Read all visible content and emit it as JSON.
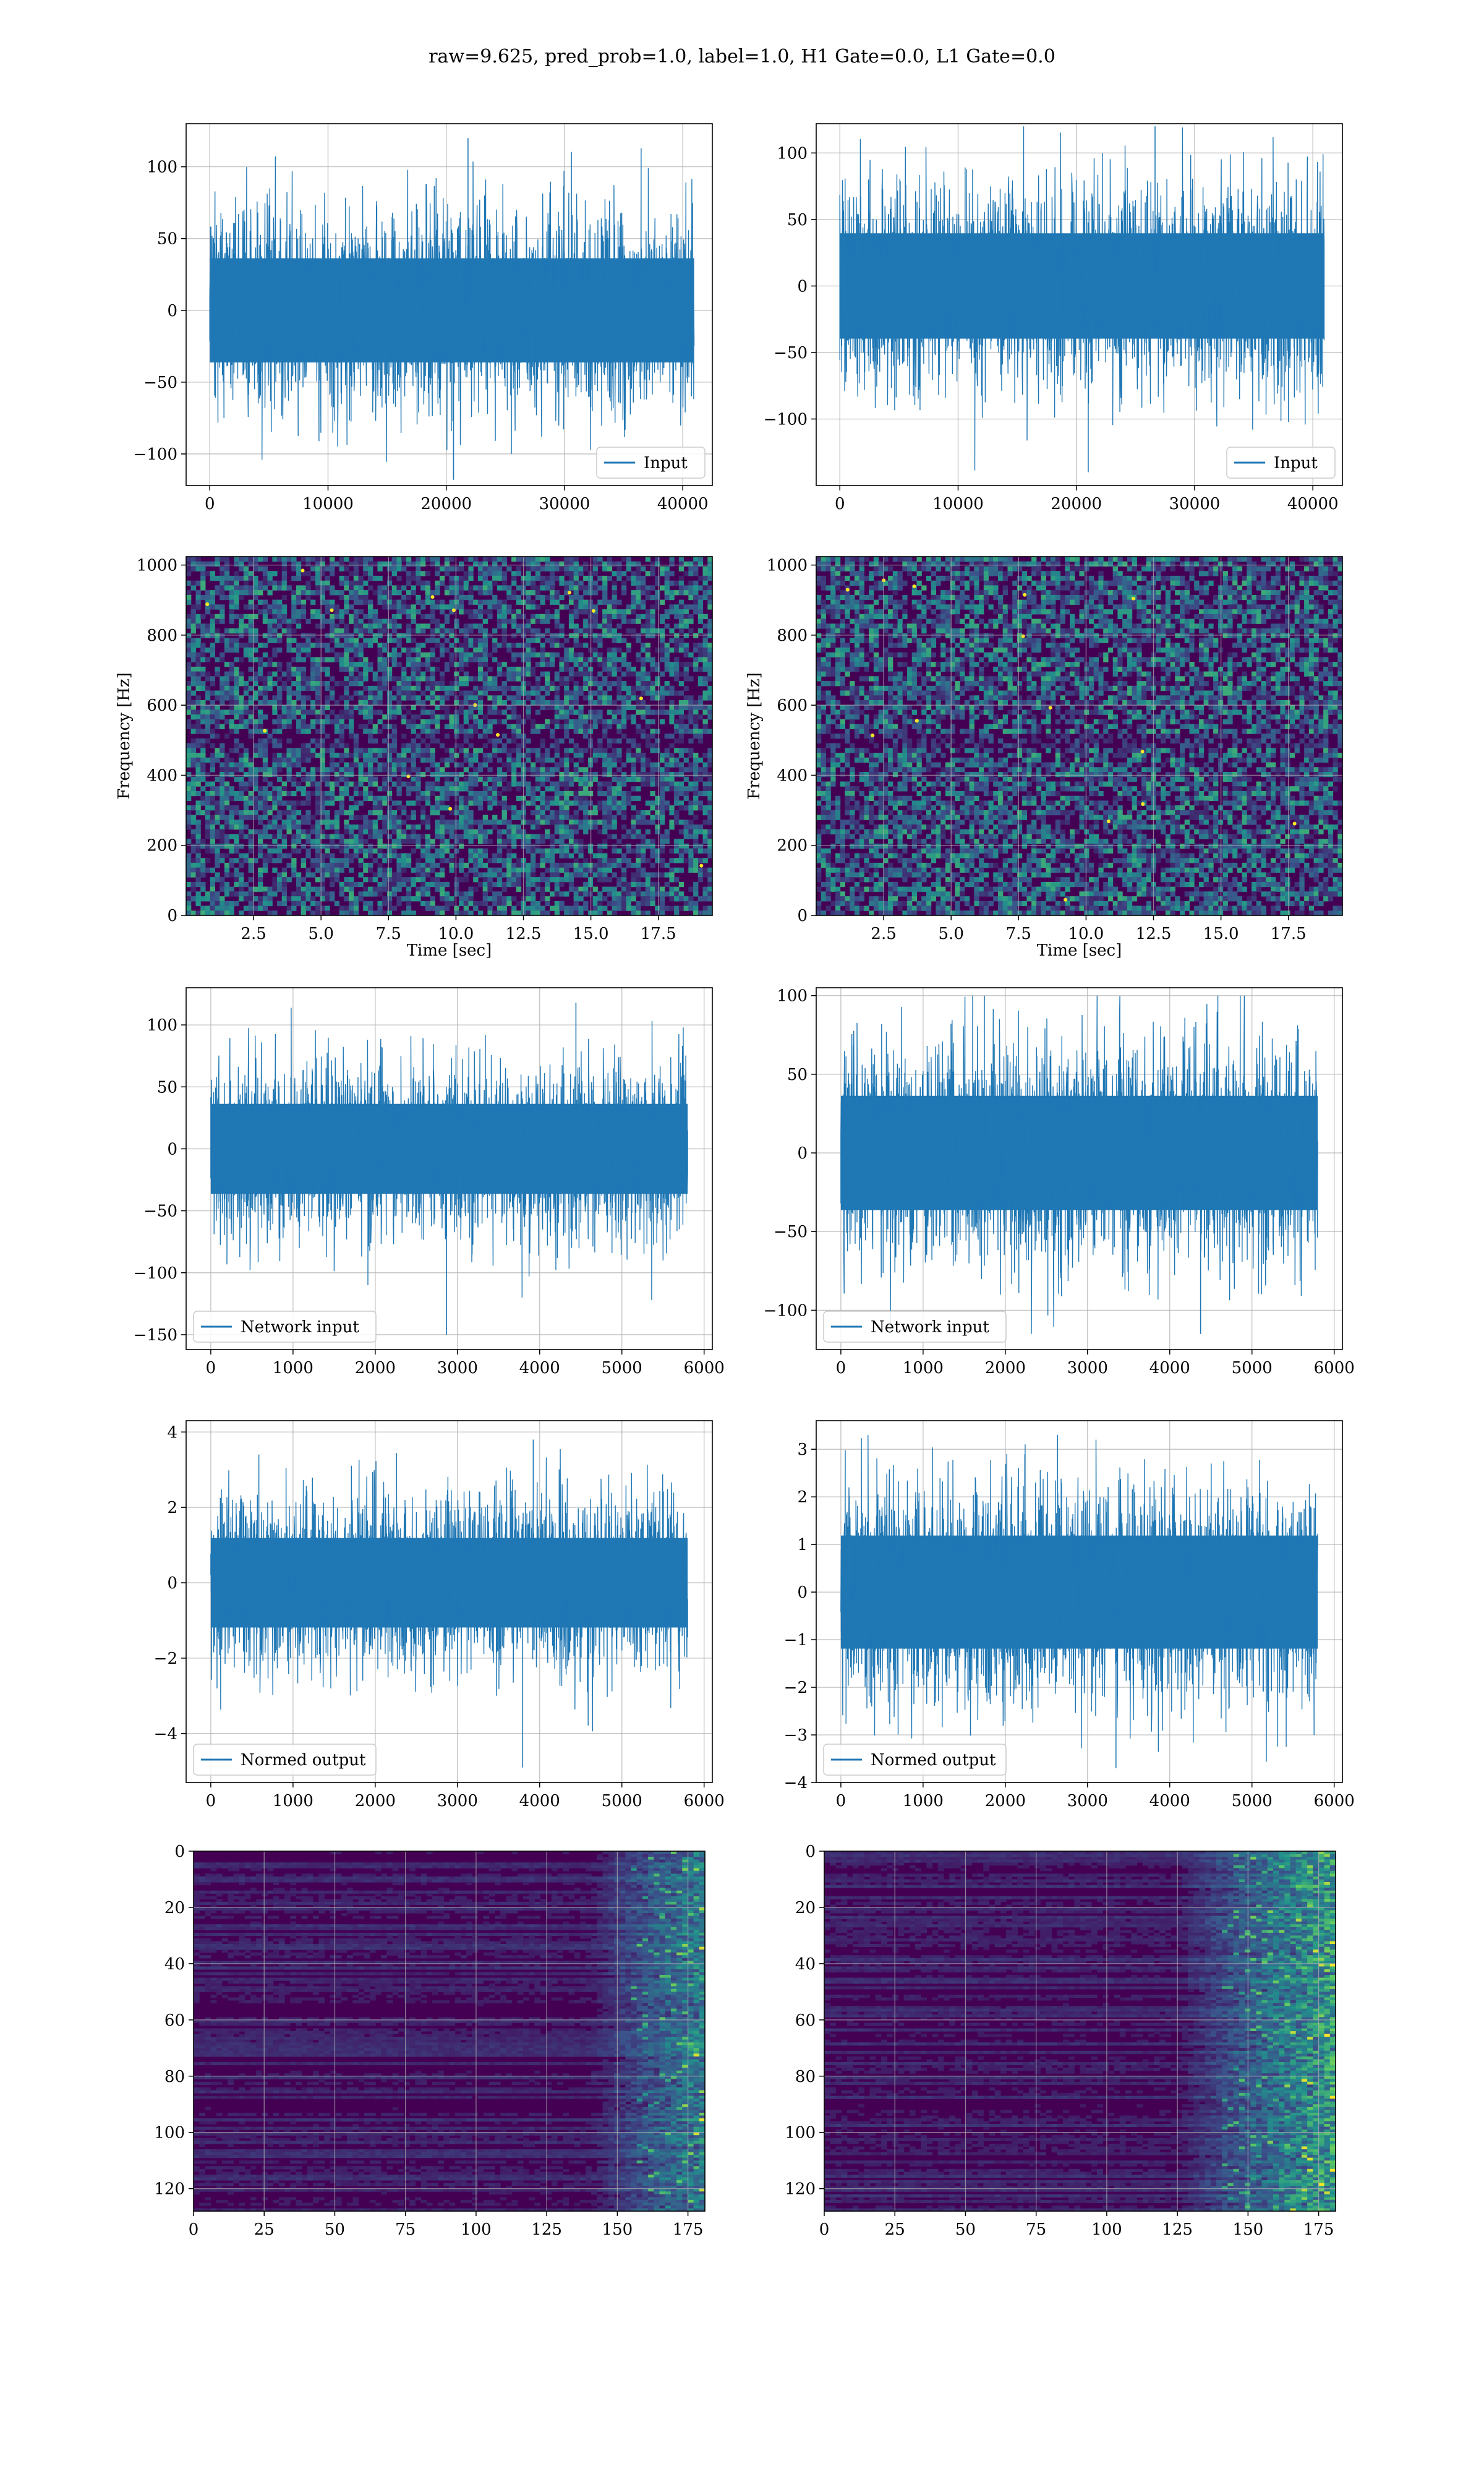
{
  "figure": {
    "title": "raw=9.625, pred_prob=1.0, label=1.0, H1 Gate=0.0, L1 Gate=0.0",
    "colors": {
      "line": "#1f77b4",
      "grid": "#b0b0b0",
      "viridis_low": "#440154",
      "viridis_mid": "#21918c",
      "viridis_high": "#fde725"
    }
  },
  "chart_data": [
    {
      "id": "h1-input",
      "type": "line",
      "series": [
        {
          "name": "Input",
          "x_range": [
            0,
            40960
          ],
          "values_range": [
            -118,
            120
          ],
          "typical_range": [
            -55,
            55
          ]
        }
      ],
      "xlim": [
        -2000,
        42500
      ],
      "ylim": [
        -122,
        130
      ],
      "xticks": [
        0,
        10000,
        20000,
        30000,
        40000
      ],
      "yticks": [
        -100,
        -50,
        0,
        50,
        100
      ],
      "legend": "lower right",
      "grid": true
    },
    {
      "id": "l1-input",
      "type": "line",
      "series": [
        {
          "name": "Input",
          "x_range": [
            0,
            40960
          ],
          "values_range": [
            -140,
            120
          ],
          "typical_range": [
            -60,
            60
          ]
        }
      ],
      "xlim": [
        -2000,
        42500
      ],
      "ylim": [
        -150,
        122
      ],
      "xticks": [
        0,
        10000,
        20000,
        30000,
        40000
      ],
      "yticks": [
        -100,
        -50,
        0,
        50,
        100
      ],
      "legend": "lower right",
      "grid": true
    },
    {
      "id": "h1-spectrogram",
      "type": "heatmap",
      "xlabel": "Time [sec]",
      "ylabel": "Frequency [Hz]",
      "xlim": [
        0,
        19.5
      ],
      "ylim": [
        0,
        1024
      ],
      "xticks": [
        "2.5",
        "5.0",
        "7.5",
        "10.0",
        "12.5",
        "15.0",
        "17.5"
      ],
      "yticks": [
        0,
        200,
        400,
        600,
        800,
        1000
      ],
      "colormap": "viridis",
      "grid": true
    },
    {
      "id": "l1-spectrogram",
      "type": "heatmap",
      "xlabel": "Time [sec]",
      "ylabel": "Frequency [Hz]",
      "xlim": [
        0,
        19.5
      ],
      "ylim": [
        0,
        1024
      ],
      "xticks": [
        "2.5",
        "5.0",
        "7.5",
        "10.0",
        "12.5",
        "15.0",
        "17.5"
      ],
      "yticks": [
        0,
        200,
        400,
        600,
        800,
        1000
      ],
      "colormap": "viridis",
      "grid": true
    },
    {
      "id": "h1-network-input",
      "type": "line",
      "series": [
        {
          "name": "Network input",
          "x_range": [
            0,
            5800
          ],
          "values_range": [
            -150,
            118
          ],
          "typical_range": [
            -55,
            55
          ]
        }
      ],
      "xlim": [
        -300,
        6100
      ],
      "ylim": [
        -162,
        130
      ],
      "xticks": [
        0,
        1000,
        2000,
        3000,
        4000,
        5000,
        6000
      ],
      "yticks": [
        -150,
        -100,
        -50,
        0,
        50,
        100
      ],
      "legend": "lower left",
      "grid": true
    },
    {
      "id": "l1-network-input",
      "type": "line",
      "series": [
        {
          "name": "Network input",
          "x_range": [
            0,
            5800
          ],
          "values_range": [
            -115,
            100
          ],
          "typical_range": [
            -55,
            55
          ]
        }
      ],
      "xlim": [
        -300,
        6100
      ],
      "ylim": [
        -125,
        105
      ],
      "xticks": [
        0,
        1000,
        2000,
        3000,
        4000,
        5000,
        6000
      ],
      "yticks": [
        -100,
        -50,
        0,
        50,
        100
      ],
      "legend": "lower left",
      "grid": true
    },
    {
      "id": "h1-normed-output",
      "type": "line",
      "series": [
        {
          "name": "Normed output",
          "x_range": [
            0,
            5800
          ],
          "values_range": [
            -4.9,
            3.8
          ],
          "typical_range": [
            -1.8,
            1.8
          ]
        }
      ],
      "xlim": [
        -300,
        6100
      ],
      "ylim": [
        -5.3,
        4.3
      ],
      "xticks": [
        0,
        1000,
        2000,
        3000,
        4000,
        5000,
        6000
      ],
      "yticks": [
        -4,
        -2,
        0,
        2,
        4
      ],
      "legend": "lower left",
      "grid": true
    },
    {
      "id": "l1-normed-output",
      "type": "line",
      "series": [
        {
          "name": "Normed output",
          "x_range": [
            0,
            5800
          ],
          "values_range": [
            -3.7,
            3.3
          ],
          "typical_range": [
            -1.8,
            1.8
          ]
        }
      ],
      "xlim": [
        -300,
        6100
      ],
      "ylim": [
        -4.0,
        3.6
      ],
      "xticks": [
        0,
        1000,
        2000,
        3000,
        4000,
        5000,
        6000
      ],
      "yticks": [
        -4,
        -3,
        -2,
        -1,
        0,
        1,
        2,
        3
      ],
      "legend": "lower left",
      "grid": true
    },
    {
      "id": "h1-feature-map",
      "type": "heatmap",
      "xlim": [
        0,
        181
      ],
      "ylim": [
        128,
        0
      ],
      "xticks": [
        0,
        25,
        50,
        75,
        100,
        125,
        150,
        175
      ],
      "yticks": [
        0,
        20,
        40,
        60,
        80,
        100,
        120
      ],
      "colormap": "viridis",
      "bright_region_x": [
        155,
        181
      ],
      "grid": true
    },
    {
      "id": "l1-feature-map",
      "type": "heatmap",
      "xlim": [
        0,
        181
      ],
      "ylim": [
        128,
        0
      ],
      "xticks": [
        0,
        25,
        50,
        75,
        100,
        125,
        150,
        175
      ],
      "yticks": [
        0,
        20,
        40,
        60,
        80,
        100,
        120
      ],
      "colormap": "viridis",
      "bright_region_x": [
        140,
        181
      ],
      "grid": true
    }
  ]
}
